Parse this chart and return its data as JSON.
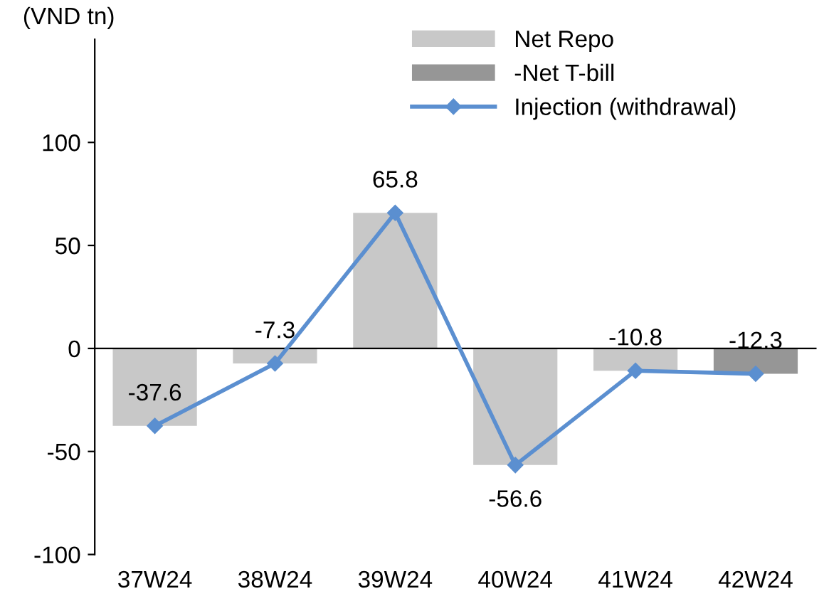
{
  "chart_data": {
    "type": "bar",
    "stacked": true,
    "ylabel": "(VND tn)",
    "categories": [
      "37W24",
      "38W24",
      "39W24",
      "40W24",
      "41W24",
      "42W24"
    ],
    "series": [
      {
        "name": "Net Repo",
        "color": "#c8c8c8",
        "values": [
          -37.6,
          -7.3,
          65.8,
          -56.6,
          -10.8,
          0
        ]
      },
      {
        "name": "-Net T-bill",
        "color": "#969696",
        "values": [
          0,
          0,
          0,
          0,
          0,
          -12.3
        ]
      },
      {
        "name": "Injection (withdrawal)",
        "type": "line",
        "color": "#5b8fd0",
        "marker": "diamond",
        "line_style": "solid",
        "data_labels": true,
        "values": [
          -37.6,
          -7.3,
          65.8,
          -56.6,
          -10.8,
          -12.3
        ]
      }
    ],
    "ylim": [
      -100,
      150
    ],
    "yticks": [
      -100,
      -50,
      0,
      50,
      100
    ],
    "legend": "top right"
  }
}
